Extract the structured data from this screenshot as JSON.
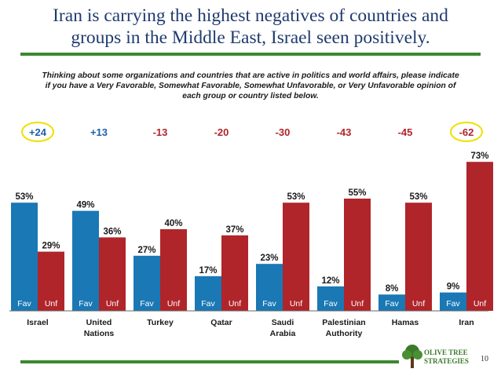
{
  "title_line1": "Iran is carrying the highest negatives of countries and",
  "title_line2": "groups in the Middle East, Israel seen positively.",
  "question": "Thinking about some organizations and countries that are active in politics and world affairs, please indicate if you have a Very Favorable, Somewhat Favorable, Somewhat Unfavorable, or Very Unfavorable opinion of each group or country listed below.",
  "logo_line1": "OLIVE TREE",
  "logo_line2": "STRATEGIES",
  "page_number": "10",
  "colors": {
    "fav": "#1a78b4",
    "unf": "#b0252a",
    "net_positive": "#1f5fa8",
    "net_negative": "#b0252a",
    "highlight": "#f0e000",
    "rule": "#3a8a2e"
  },
  "chart_data": {
    "type": "bar",
    "categories": [
      "Israel",
      "United Nations",
      "Turkey",
      "Qatar",
      "Saudi Arabia",
      "Palestinian Authority",
      "Hamas",
      "Iran"
    ],
    "category_lines": [
      [
        "Israel"
      ],
      [
        "United",
        "Nations"
      ],
      [
        "Turkey"
      ],
      [
        "Qatar"
      ],
      [
        "Saudi",
        "Arabia"
      ],
      [
        "Palestinian",
        "Authority"
      ],
      [
        "Hamas"
      ],
      [
        "Iran"
      ]
    ],
    "series": [
      {
        "name": "Fav",
        "values": [
          53,
          49,
          27,
          17,
          23,
          12,
          8,
          9
        ],
        "labels": [
          "53%",
          "49%",
          "27%",
          "17%",
          "23%",
          "12%",
          "8%",
          "9%"
        ]
      },
      {
        "name": "Unf",
        "values": [
          29,
          36,
          40,
          37,
          53,
          55,
          53,
          73
        ],
        "labels": [
          "29%",
          "36%",
          "40%",
          "37%",
          "53%",
          "55%",
          "53%",
          "73%"
        ]
      }
    ],
    "net": [
      "+24",
      "+13",
      "-13",
      "-20",
      "-30",
      "-43",
      "-45",
      "-62"
    ],
    "highlighted_net": [
      "+24",
      "-62"
    ],
    "ylim": [
      0,
      80
    ],
    "grid": false,
    "legend": "none"
  }
}
